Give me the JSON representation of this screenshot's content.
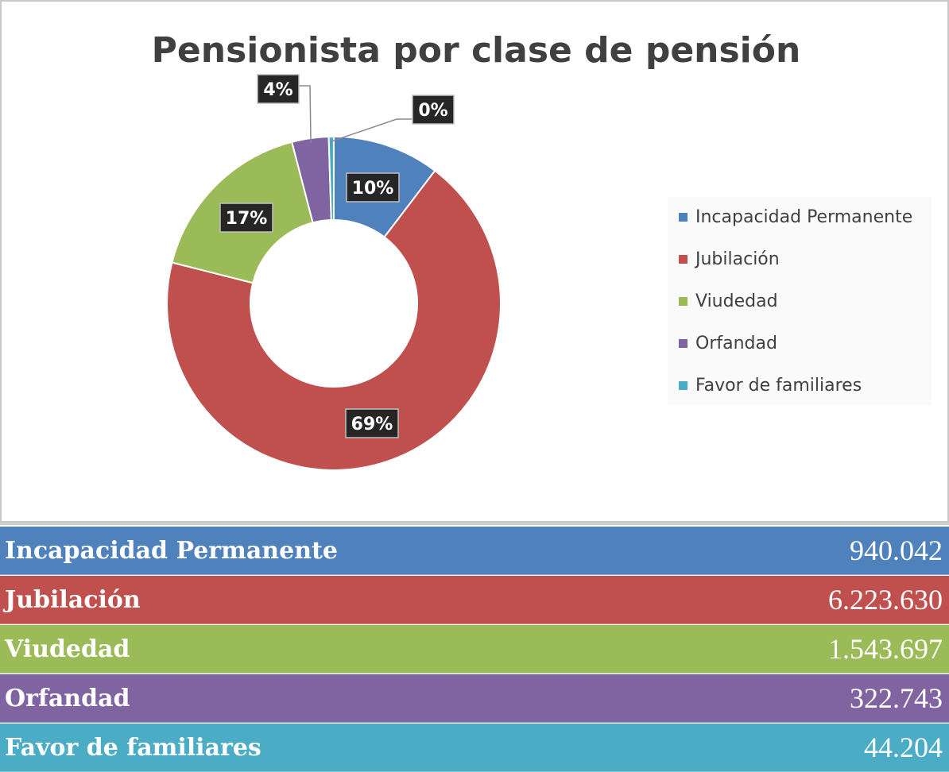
{
  "chart_data": {
    "type": "pie",
    "title": "Pensionista por clase de pensión",
    "categories": [
      "Incapacidad Permanente",
      "Jubilación",
      "Viudedad",
      "Orfandad",
      "Favor de familiares"
    ],
    "values": [
      940042,
      6223630,
      1543697,
      322743,
      44204
    ],
    "value_labels": [
      "940.042",
      "6.223.630",
      "1.543.697",
      "322.743",
      "44.204"
    ],
    "percent_labels": [
      "10%",
      "69%",
      "17%",
      "4%",
      "0%"
    ],
    "colors": [
      "#4f81bd",
      "#c0504d",
      "#9bbb59",
      "#8064a2",
      "#4bacc6"
    ],
    "donut": true,
    "legend_position": "right"
  }
}
